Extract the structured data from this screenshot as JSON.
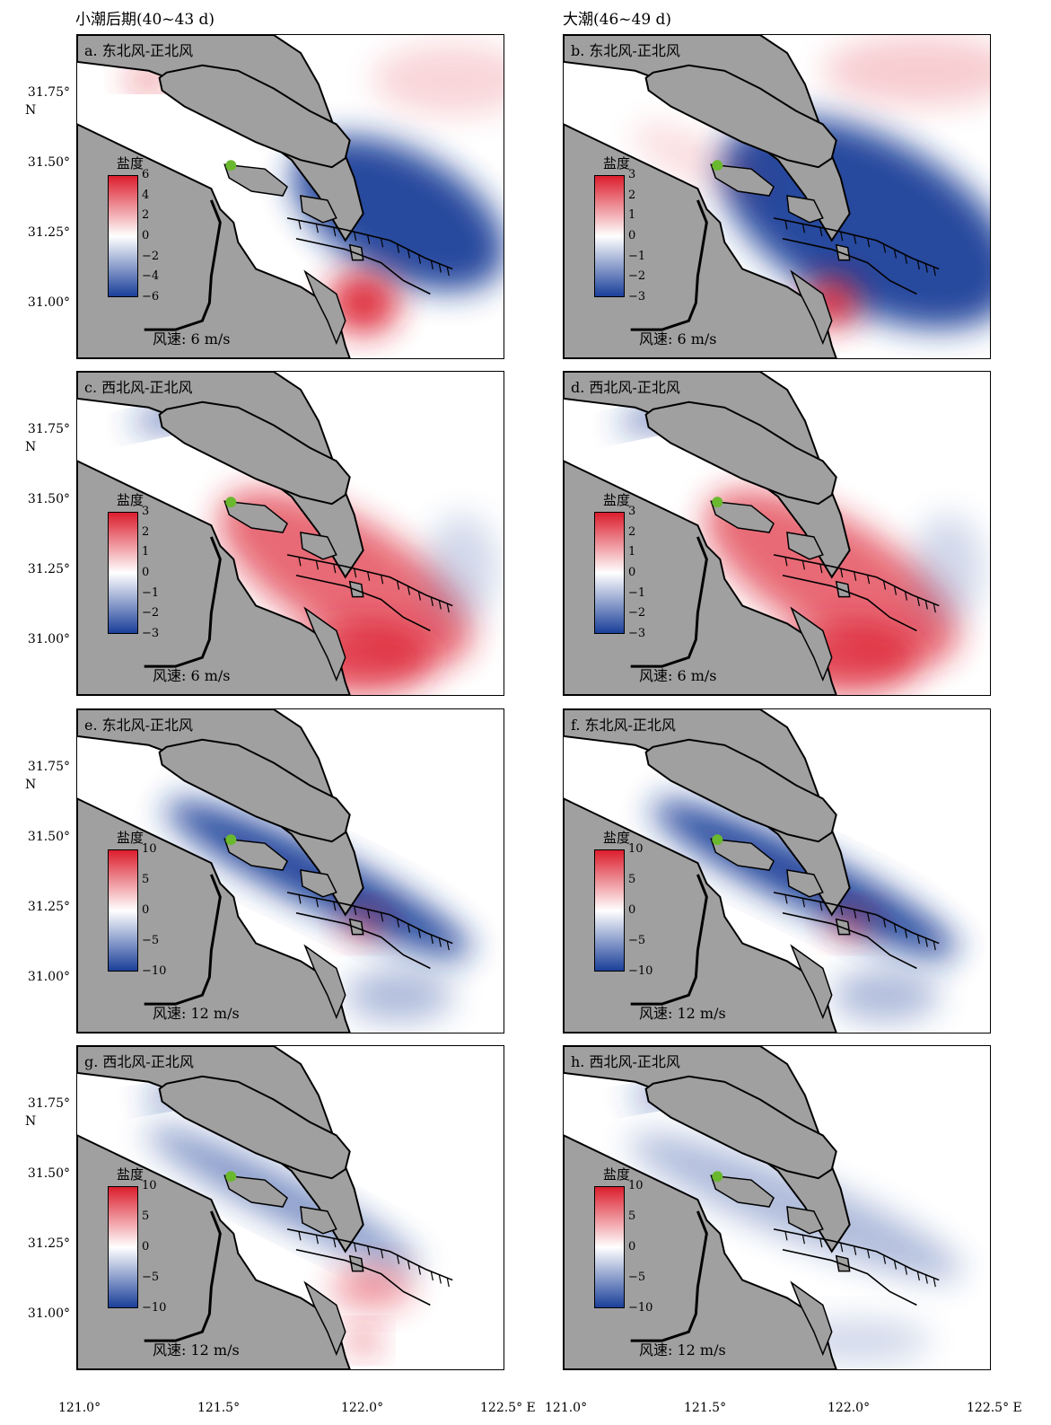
{
  "column_titles": [
    "小潮后期(40~43 d)",
    "大潮(46~49 d)"
  ],
  "y_ticks": [
    "31.75°",
    "31.50°",
    "31.25°",
    "31.00°"
  ],
  "y_unit": "N",
  "x_ticks": [
    "121.0°",
    "121.5°",
    "122.0°",
    "122.5° E"
  ],
  "colorbar_title": "盐度",
  "colors": {
    "land": "#a0a0a0",
    "positive": "#dc1e2d",
    "negative": "#1a3f99",
    "station": "#6ab82e"
  },
  "panels": [
    {
      "label": "a. 东北风-正北风",
      "wind": "风速: 6 m/s",
      "ticks": [
        "6",
        "4",
        "2",
        "0",
        "−2",
        "−4",
        "−6"
      ],
      "anomaly": "neg-east"
    },
    {
      "label": "b. 东北风-正北风",
      "wind": "风速: 6 m/s",
      "ticks": [
        "3",
        "2",
        "1",
        "0",
        "−1",
        "−2",
        "−3"
      ],
      "anomaly": "neg-wide"
    },
    {
      "label": "c. 西北风-正北风",
      "wind": "风速: 6 m/s",
      "ticks": [
        "3",
        "2",
        "1",
        "0",
        "−1",
        "−2",
        "−3"
      ],
      "anomaly": "pos"
    },
    {
      "label": "d. 西北风-正北风",
      "wind": "风速: 6 m/s",
      "ticks": [
        "3",
        "2",
        "1",
        "0",
        "−1",
        "−2",
        "−3"
      ],
      "anomaly": "pos"
    },
    {
      "label": "e. 东北风-正北风",
      "wind": "风速: 12 m/s",
      "ticks": [
        "10",
        "5",
        "0",
        "−5",
        "−10"
      ],
      "anomaly": "neg-channel"
    },
    {
      "label": "f. 东北风-正北风",
      "wind": "风速: 12 m/s",
      "ticks": [
        "10",
        "5",
        "0",
        "−5",
        "−10"
      ],
      "anomaly": "neg-channel"
    },
    {
      "label": "g. 西北风-正北风",
      "wind": "风速: 12 m/s",
      "ticks": [
        "10",
        "5",
        "0",
        "−5",
        "−10"
      ],
      "anomaly": "mixed"
    },
    {
      "label": "h. 西北风-正北风",
      "wind": "风速: 12 m/s",
      "ticks": [
        "10",
        "5",
        "0",
        "−5",
        "−10"
      ],
      "anomaly": "weak"
    }
  ]
}
